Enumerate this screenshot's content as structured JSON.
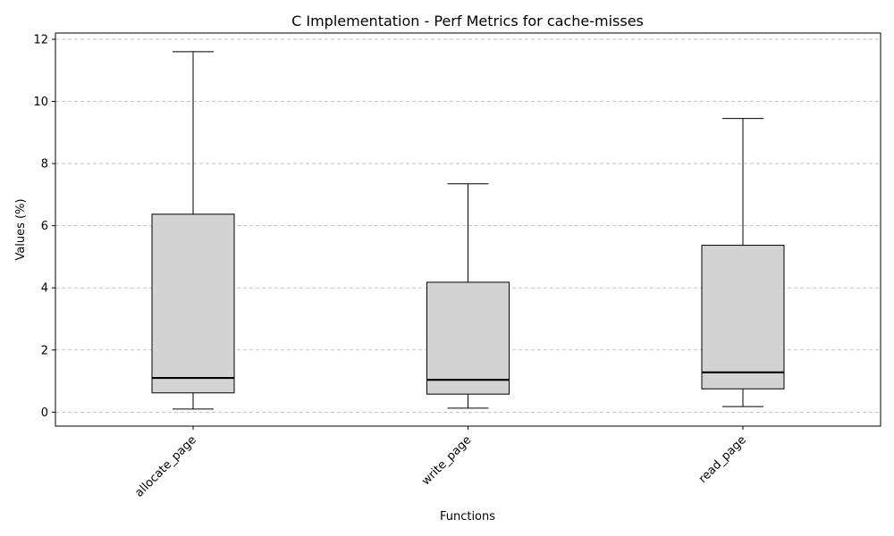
{
  "chart_data": {
    "type": "box",
    "title": "C Implementation - Perf Metrics for cache-misses",
    "xlabel": "Functions",
    "ylabel": "Values (%)",
    "ylim": [
      -0.45,
      12.2
    ],
    "yticks": [
      0,
      2,
      4,
      6,
      8,
      10,
      12
    ],
    "grid": "y-dashed",
    "categories": [
      "allocate_page",
      "write_page",
      "read_page"
    ],
    "boxes": [
      {
        "label": "allocate_page",
        "min": 0.1,
        "q1": 0.62,
        "median": 1.1,
        "q3": 6.37,
        "max": 11.6
      },
      {
        "label": "write_page",
        "min": 0.13,
        "q1": 0.58,
        "median": 1.04,
        "q3": 4.18,
        "max": 7.35
      },
      {
        "label": "read_page",
        "min": 0.18,
        "q1": 0.75,
        "median": 1.28,
        "q3": 5.37,
        "max": 9.45
      }
    ],
    "colors": {
      "box_fill": "#d3d3d3",
      "edge": "#000000",
      "grid": "#b0b0b0"
    }
  }
}
